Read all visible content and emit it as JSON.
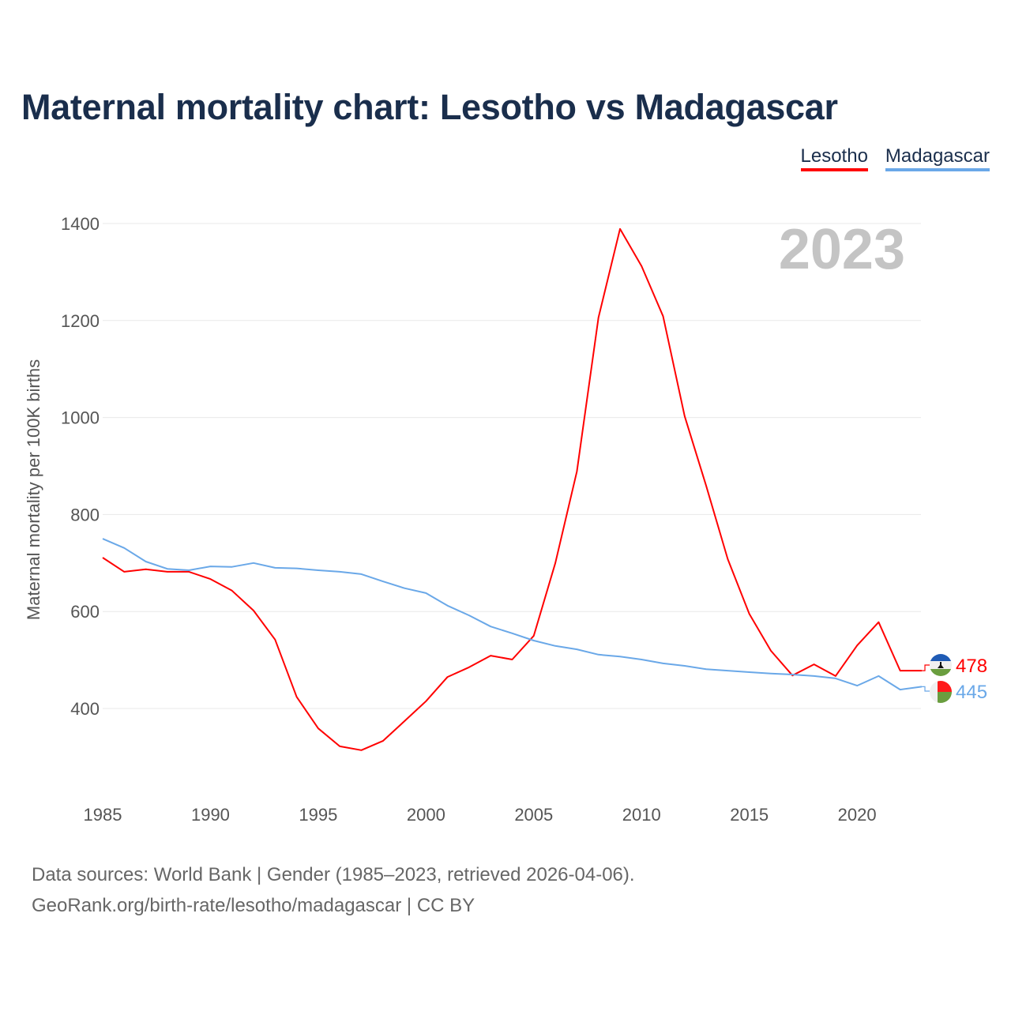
{
  "chart_data": {
    "type": "line",
    "title": "Maternal mortality chart: Lesotho vs Madagascar",
    "ylabel": "Maternal mortality per 100K births",
    "xlabel": "",
    "year_watermark": "2023",
    "xlim": [
      1985,
      2023
    ],
    "ylim": [
      230,
      1420
    ],
    "x_ticks": [
      1985,
      1990,
      1995,
      2000,
      2005,
      2010,
      2015,
      2020
    ],
    "y_ticks": [
      400,
      600,
      800,
      1000,
      1200,
      1400
    ],
    "grid": true,
    "legend_position": "top-right",
    "x": [
      1985,
      1986,
      1987,
      1988,
      1989,
      1990,
      1991,
      1992,
      1993,
      1994,
      1995,
      1996,
      1997,
      1998,
      1999,
      2000,
      2001,
      2002,
      2003,
      2004,
      2005,
      2006,
      2007,
      2008,
      2009,
      2010,
      2011,
      2012,
      2013,
      2014,
      2015,
      2016,
      2017,
      2018,
      2019,
      2020,
      2021,
      2022,
      2023
    ],
    "series": [
      {
        "name": "Lesotho",
        "color": "#ff0000",
        "end_label": "478",
        "values": [
          711,
          682,
          687,
          682,
          682,
          667,
          643,
          602,
          542,
          424,
          359,
          322,
          314,
          333,
          374,
          415,
          465,
          485,
          509,
          501,
          550,
          700,
          889,
          1206,
          1389,
          1312,
          1209,
          1003,
          859,
          708,
          595,
          519,
          468,
          491,
          467,
          530,
          578,
          478,
          478
        ]
      },
      {
        "name": "Madagascar",
        "color": "#6aa8e8",
        "end_label": "445",
        "values": [
          750,
          731,
          703,
          688,
          685,
          693,
          692,
          700,
          690,
          689,
          685,
          682,
          677,
          662,
          648,
          638,
          612,
          592,
          569,
          555,
          540,
          529,
          522,
          511,
          507,
          501,
          493,
          488,
          481,
          478,
          475,
          472,
          470,
          467,
          462,
          447,
          467,
          439,
          445
        ]
      }
    ]
  },
  "footer": {
    "line1": "Data sources: World Bank | Gender (1985–2023, retrieved 2026-04-06).",
    "line2": "GeoRank.org/birth-rate/lesotho/madagascar | CC BY"
  }
}
